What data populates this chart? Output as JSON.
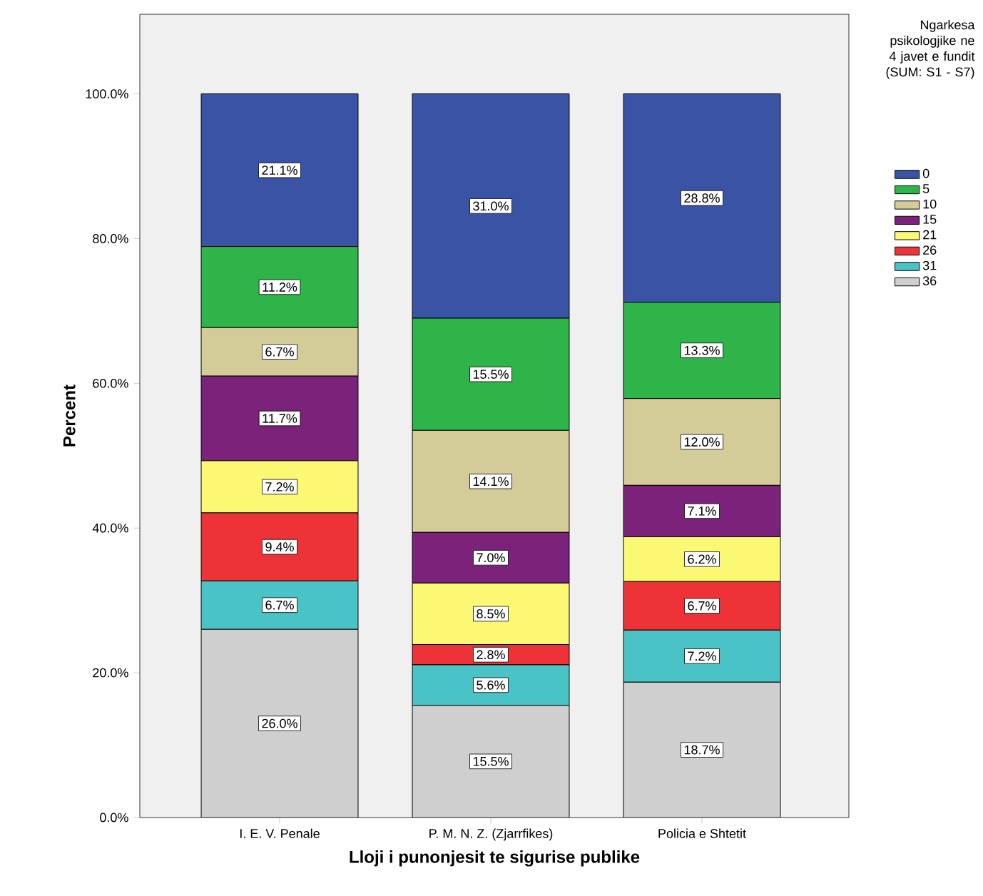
{
  "chart_data": {
    "type": "bar",
    "stacked": true,
    "xlabel": "Lloji i punonjesit te sigurise publike",
    "ylabel": "Percent",
    "legend_title": "Ngarkesa psikologjike ne 4 javet e fundit (SUM: S1 - S7)",
    "legend": "right",
    "categories": [
      "I. E. V. Penale",
      "P. M. N. Z. (Zjarrfikes)",
      "Policia e Shtetit"
    ],
    "ylim": [
      0,
      111
    ],
    "yticks": [
      {
        "value": 0,
        "label": "0.0%"
      },
      {
        "value": 20,
        "label": "20.0%"
      },
      {
        "value": 40,
        "label": "40.0%"
      },
      {
        "value": 60,
        "label": "60.0%"
      },
      {
        "value": 80,
        "label": "80.0%"
      },
      {
        "value": 100,
        "label": "100.0%"
      }
    ],
    "series": [
      {
        "name": "36",
        "color": "#cfcfcf",
        "values": [
          26.0,
          15.5,
          18.7
        ],
        "value_labels": [
          "26.0%",
          "15.5%",
          "18.7%"
        ]
      },
      {
        "name": "31",
        "color": "#4ac3c6",
        "values": [
          6.7,
          5.6,
          7.2
        ],
        "value_labels": [
          "6.7%",
          "5.6%",
          "7.2%"
        ]
      },
      {
        "name": "26",
        "color": "#ee3338",
        "values": [
          9.4,
          2.8,
          6.7
        ],
        "value_labels": [
          "9.4%",
          "2.8%",
          "6.7%"
        ]
      },
      {
        "name": "21",
        "color": "#fbf873",
        "values": [
          7.2,
          8.5,
          6.2
        ],
        "value_labels": [
          "7.2%",
          "8.5%",
          "6.2%"
        ]
      },
      {
        "name": "15",
        "color": "#7b237a",
        "values": [
          11.7,
          7.0,
          7.1
        ],
        "value_labels": [
          "11.7%",
          "7.0%",
          "7.1%"
        ]
      },
      {
        "name": "10",
        "color": "#d4cc98",
        "values": [
          6.7,
          14.1,
          12.0
        ],
        "value_labels": [
          "6.7%",
          "14.1%",
          "12.0%"
        ]
      },
      {
        "name": "5",
        "color": "#2fb44a",
        "values": [
          11.2,
          15.5,
          13.3
        ],
        "value_labels": [
          "11.2%",
          "15.5%",
          "13.3%"
        ]
      },
      {
        "name": "0",
        "color": "#3a53a4",
        "values": [
          21.1,
          31.0,
          28.8
        ],
        "value_labels": [
          "21.1%",
          "31.0%",
          "28.8%"
        ]
      }
    ]
  }
}
